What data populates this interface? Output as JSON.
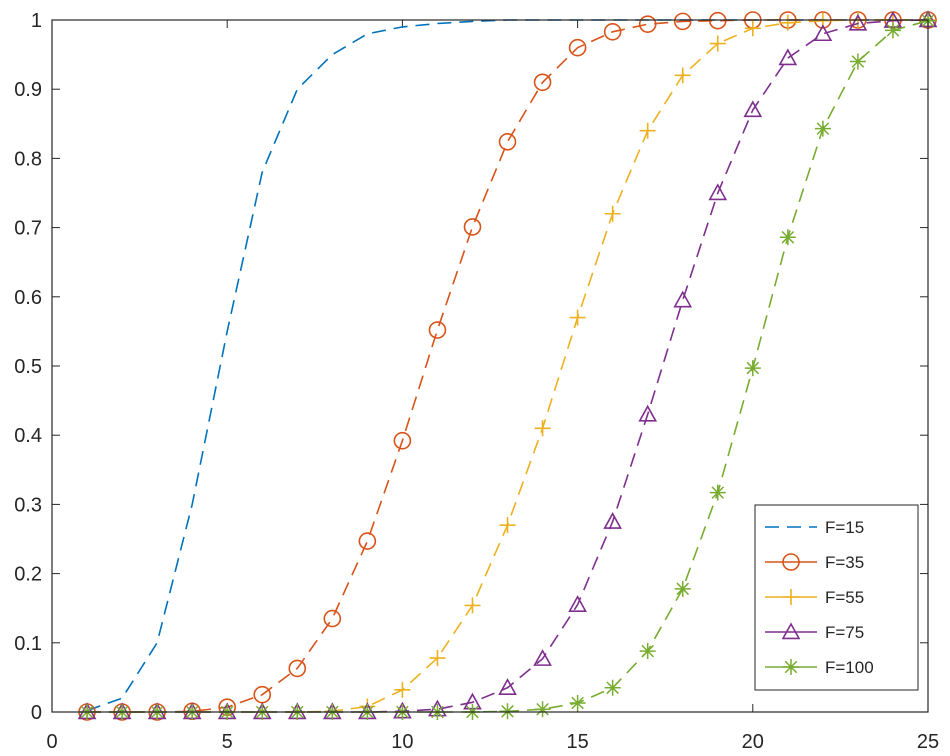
{
  "chart_data": {
    "type": "line",
    "title": "",
    "xlabel": "",
    "ylabel": "",
    "xlim": [
      0,
      25
    ],
    "ylim": [
      0,
      1
    ],
    "xticks": [
      "0",
      "5",
      "10",
      "15",
      "20",
      "25"
    ],
    "yticks": [
      "0",
      "0.1",
      "0.2",
      "0.3",
      "0.4",
      "0.5",
      "0.6",
      "0.7",
      "0.8",
      "0.9",
      "1"
    ],
    "grid": false,
    "legend_position": "bottom-right",
    "x": [
      1,
      2,
      3,
      4,
      5,
      6,
      7,
      8,
      9,
      10,
      11,
      12,
      13,
      14,
      15,
      16,
      17,
      18,
      19,
      20,
      21,
      22,
      23,
      24,
      25
    ],
    "series": [
      {
        "name": "F=15",
        "color": "#0072BD",
        "marker": "none",
        "values": [
          0.002,
          0.02,
          0.1,
          0.3,
          0.55,
          0.78,
          0.9,
          0.95,
          0.98,
          0.99,
          0.995,
          0.998,
          1,
          1,
          1,
          1,
          1,
          1,
          1,
          1,
          1,
          1,
          1,
          1,
          1
        ]
      },
      {
        "name": "F=35",
        "color": "#D95319",
        "marker": "circle",
        "values": [
          0,
          0,
          0,
          0.001,
          0.007,
          0.025,
          0.063,
          0.135,
          0.247,
          0.392,
          0.552,
          0.701,
          0.824,
          0.91,
          0.96,
          0.983,
          0.994,
          0.998,
          0.999,
          1,
          1,
          1,
          1,
          1,
          1
        ]
      },
      {
        "name": "F=55",
        "color": "#EDB120",
        "marker": "plus",
        "values": [
          0,
          0,
          0,
          0,
          0,
          0,
          0,
          0.001,
          0.008,
          0.032,
          0.078,
          0.154,
          0.27,
          0.41,
          0.57,
          0.72,
          0.84,
          0.92,
          0.966,
          0.988,
          0.996,
          0.999,
          1,
          1,
          1
        ]
      },
      {
        "name": "F=75",
        "color": "#7E2F8E",
        "marker": "triangle",
        "values": [
          0,
          0,
          0,
          0,
          0,
          0,
          0,
          0,
          0,
          0.001,
          0.004,
          0.014,
          0.035,
          0.077,
          0.155,
          0.275,
          0.43,
          0.595,
          0.75,
          0.87,
          0.945,
          0.98,
          0.995,
          0.999,
          1
        ]
      },
      {
        "name": "F=100",
        "color": "#77AC30",
        "marker": "asterisk",
        "values": [
          0,
          0,
          0,
          0,
          0,
          0,
          0,
          0,
          0,
          0,
          0,
          0,
          0.001,
          0.004,
          0.013,
          0.035,
          0.088,
          0.178,
          0.317,
          0.497,
          0.686,
          0.843,
          0.94,
          0.985,
          0.999
        ]
      }
    ]
  }
}
